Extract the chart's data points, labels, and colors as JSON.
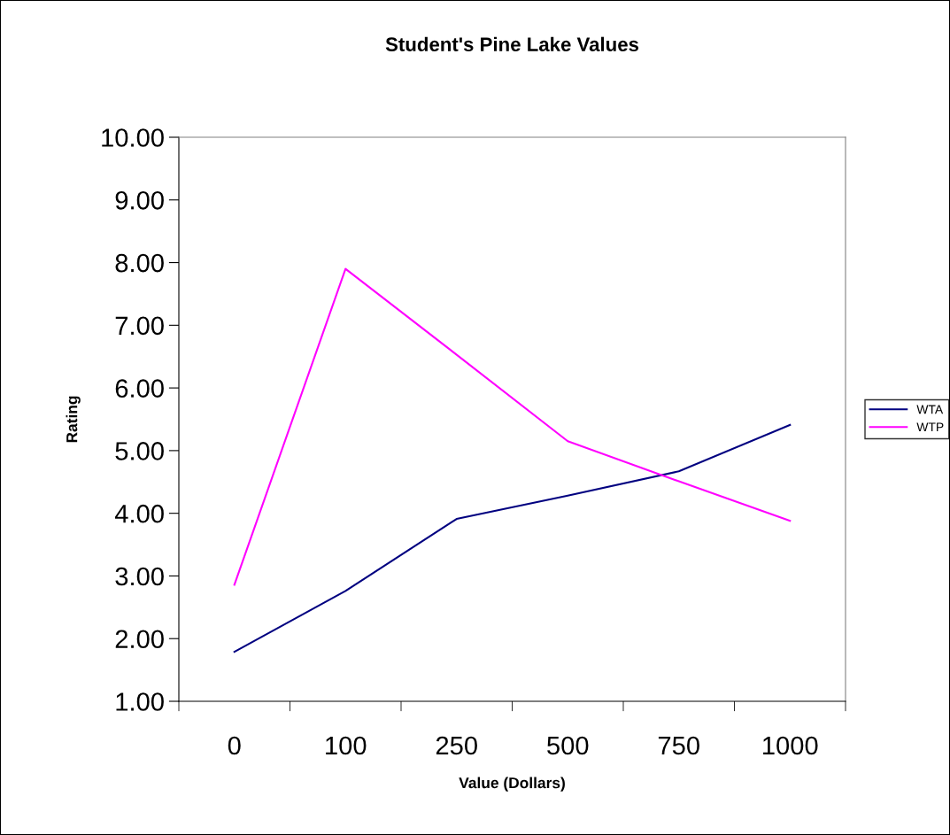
{
  "chart_data": {
    "type": "line",
    "title": "Student's Pine Lake Values",
    "xlabel": "Value (Dollars)",
    "ylabel": "Rating",
    "categories": [
      "0",
      "100",
      "250",
      "500",
      "750",
      "1000"
    ],
    "series": [
      {
        "name": "WTA",
        "color": "#000080",
        "values": [
          1.79,
          2.76,
          3.91,
          4.28,
          4.67,
          5.41
        ]
      },
      {
        "name": "WTP",
        "color": "#ff00ff",
        "values": [
          2.86,
          7.9,
          6.53,
          5.15,
          4.51,
          3.88
        ]
      }
    ],
    "ylim": [
      1,
      10
    ],
    "yticks": [
      {
        "value": 1,
        "label": "1.00"
      },
      {
        "value": 2,
        "label": "2.00"
      },
      {
        "value": 3,
        "label": "3.00"
      },
      {
        "value": 4,
        "label": "4.00"
      },
      {
        "value": 5,
        "label": "5.00"
      },
      {
        "value": 6,
        "label": "6.00"
      },
      {
        "value": 7,
        "label": "7.00"
      },
      {
        "value": 8,
        "label": "8.00"
      },
      {
        "value": 9,
        "label": "9.00"
      },
      {
        "value": 10,
        "label": "10.00"
      }
    ],
    "grid": false,
    "legend": "right",
    "marker": "none",
    "line_style": "solid"
  }
}
